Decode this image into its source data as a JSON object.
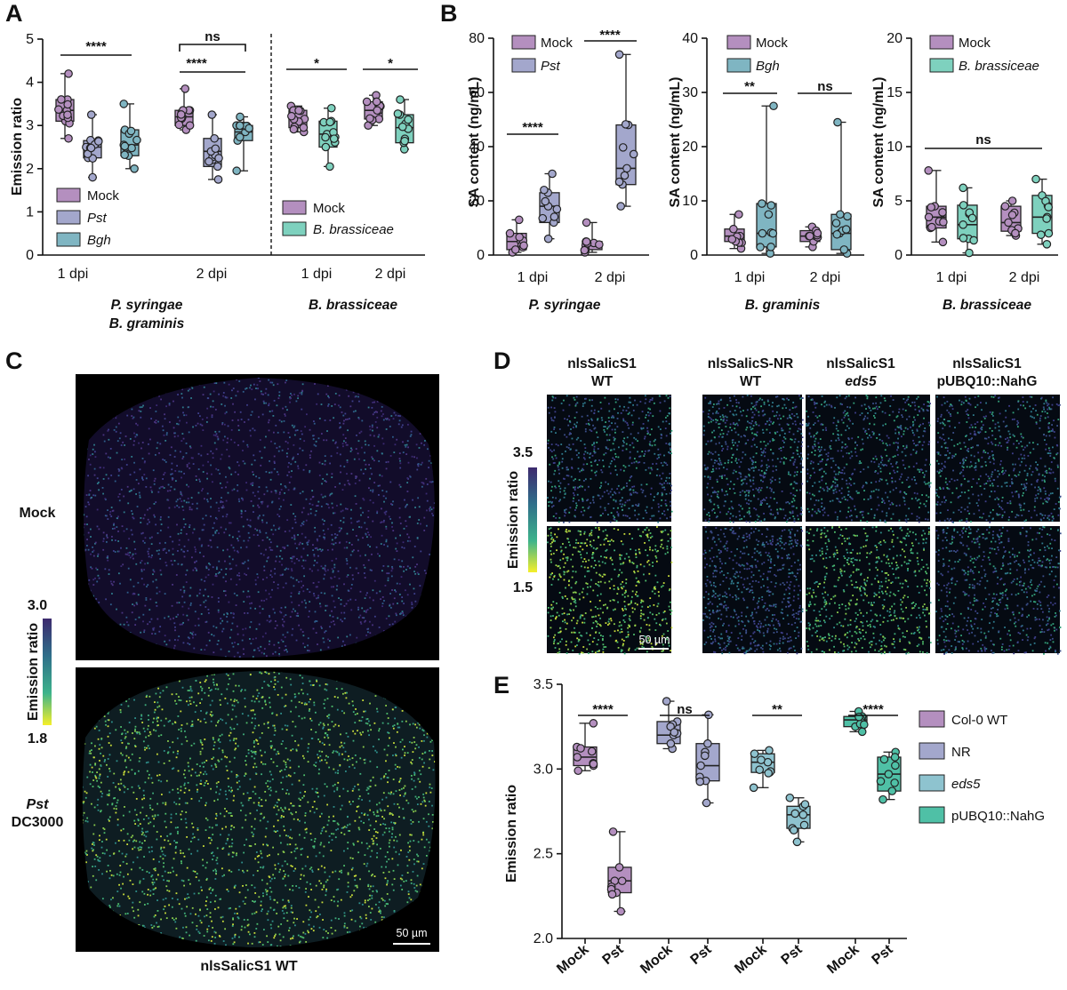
{
  "panel_labels": {
    "A": "A",
    "B": "B",
    "C": "C",
    "D": "D",
    "E": "E"
  },
  "colors": {
    "mock": "#b48fbf",
    "pst": "#a3a7cc",
    "bgh": "#7fb5c2",
    "bbras": "#7ed1be",
    "col0": "#b48fbf",
    "nr": "#a3a7cc",
    "eds5": "#8ec3cf",
    "nahg": "#4fc0a6"
  },
  "panel_a": {
    "ylabel": "Emission ratio",
    "legend1": [
      "Mock",
      "Pst",
      "Bgh"
    ],
    "legend2": [
      "Mock",
      "B. brassiceae"
    ],
    "xticks": [
      "1 dpi",
      "2 dpi",
      "1 dpi",
      "2 dpi"
    ],
    "group1_line1": "P. syringae",
    "group1_line2": "B. graminis",
    "group2": "B. brassiceae",
    "sig": [
      "****",
      "ns",
      "****",
      "*",
      "*"
    ]
  },
  "panel_b": {
    "ylabel": "SA content (ng/mL)",
    "xticks": [
      "1 dpi",
      "2 dpi"
    ],
    "sub1": {
      "legend": [
        "Mock",
        "Pst"
      ],
      "group": "P. syringae",
      "sig": [
        "****",
        "****"
      ]
    },
    "sub2": {
      "legend": [
        "Mock",
        "Bgh"
      ],
      "group": "B. graminis",
      "sig": [
        "**",
        "ns"
      ]
    },
    "sub3": {
      "legend": [
        "Mock",
        "B. brassiceae"
      ],
      "group": "B. brassiceae",
      "sig": [
        "ns"
      ]
    }
  },
  "panel_c": {
    "row1": "Mock",
    "row2_line1": "Pst",
    "row2_line2": "DC3000",
    "caption": "nlsSalicS1 WT",
    "scalebar": "50 µm",
    "colorbar_title": "Emission ratio",
    "colorbar_max": "3.0",
    "colorbar_min": "1.8"
  },
  "panel_d": {
    "headers": [
      [
        "nlsSalicS1",
        "WT"
      ],
      [
        "nlsSalicS-NR",
        "WT"
      ],
      [
        "nlsSalicS1",
        "eds5"
      ],
      [
        "nlsSalicS1",
        "pUBQ10::NahG"
      ]
    ],
    "colorbar_title": "Emission ratio",
    "colorbar_max": "3.5",
    "colorbar_min": "1.5",
    "scalebar": "50 µm"
  },
  "panel_e": {
    "ylabel": "Emission ratio",
    "xticks": [
      "Mock",
      "Pst",
      "Mock",
      "Pst",
      "Mock",
      "Pst",
      "Mock",
      "Pst"
    ],
    "legend": [
      "Col-0 WT",
      "NR",
      "eds5",
      "pUBQ10::NahG"
    ],
    "sig": [
      "****",
      "ns",
      "**",
      "****"
    ]
  },
  "chart_data": [
    {
      "type": "box",
      "panel": "A",
      "ylabel": "Emission ratio",
      "ylim": [
        0,
        5
      ],
      "yticks": [
        0,
        1,
        2,
        3,
        4,
        5
      ],
      "categories": [
        "1 dpi",
        "2 dpi",
        "1 dpi",
        "2 dpi"
      ],
      "series": [
        {
          "name": "Mock",
          "boxes": [
            {
              "x": "1 dpi",
              "min": 2.7,
              "q1": 3.1,
              "median": 3.35,
              "q3": 3.6,
              "max": 4.2
            },
            {
              "x": "2 dpi",
              "min": 2.9,
              "q1": 3.0,
              "median": 3.2,
              "q3": 3.35,
              "max": 3.85
            }
          ]
        },
        {
          "name": "Pst",
          "boxes": [
            {
              "x": "1 dpi",
              "min": 1.8,
              "q1": 2.25,
              "median": 2.5,
              "q3": 2.65,
              "max": 3.25
            },
            {
              "x": "2 dpi",
              "min": 1.75,
              "q1": 2.05,
              "median": 2.4,
              "q3": 2.7,
              "max": 3.25
            }
          ]
        },
        {
          "name": "Bgh",
          "boxes": [
            {
              "x": "1 dpi",
              "min": 2.0,
              "q1": 2.3,
              "median": 2.55,
              "q3": 2.9,
              "max": 3.5
            },
            {
              "x": "2 dpi",
              "min": 1.95,
              "q1": 2.65,
              "median": 2.85,
              "q3": 3.0,
              "max": 3.2
            }
          ]
        },
        {
          "name": "Mock",
          "boxes": [
            {
              "x": "1 dpi",
              "min": 2.85,
              "q1": 2.95,
              "median": 3.15,
              "q3": 3.35,
              "max": 3.45
            },
            {
              "x": "2 dpi",
              "min": 3.0,
              "q1": 3.15,
              "median": 3.35,
              "q3": 3.55,
              "max": 3.7
            }
          ]
        },
        {
          "name": "B. brassiceae",
          "boxes": [
            {
              "x": "1 dpi",
              "min": 2.05,
              "q1": 2.5,
              "median": 2.8,
              "q3": 3.1,
              "max": 3.4
            },
            {
              "x": "2 dpi",
              "min": 2.45,
              "q1": 2.6,
              "median": 2.95,
              "q3": 3.25,
              "max": 3.6
            }
          ]
        }
      ],
      "significance": [
        "****",
        "ns",
        "****",
        "*",
        "*"
      ]
    },
    {
      "type": "box",
      "panel": "B",
      "ylabel": "SA content (ng/mL)",
      "ylim": [
        0,
        80
      ],
      "yticks": [
        0,
        20,
        40,
        60,
        80
      ],
      "categories": [
        "1 dpi",
        "2 dpi"
      ],
      "group": "P. syringae",
      "series": [
        {
          "name": "Mock",
          "boxes": [
            {
              "x": "1 dpi",
              "min": 1,
              "q1": 2,
              "median": 5,
              "q3": 8,
              "max": 13
            },
            {
              "x": "2 dpi",
              "min": 1,
              "q1": 2,
              "median": 3.5,
              "q3": 5,
              "max": 12
            }
          ]
        },
        {
          "name": "Pst",
          "boxes": [
            {
              "x": "1 dpi",
              "min": 6,
              "q1": 12,
              "median": 18,
              "q3": 23,
              "max": 30
            },
            {
              "x": "2 dpi",
              "min": 18,
              "q1": 26,
              "median": 32,
              "q3": 48,
              "max": 74
            }
          ]
        }
      ],
      "significance": [
        "****",
        "****"
      ]
    },
    {
      "type": "box",
      "panel": "B",
      "ylabel": "SA content (ng/mL)",
      "ylim": [
        0,
        40
      ],
      "yticks": [
        0,
        10,
        20,
        30,
        40
      ],
      "categories": [
        "1 dpi",
        "2 dpi"
      ],
      "group": "B. graminis",
      "series": [
        {
          "name": "Mock",
          "boxes": [
            {
              "x": "1 dpi",
              "min": 1.2,
              "q1": 2.5,
              "median": 3.5,
              "q3": 4.8,
              "max": 7.5
            },
            {
              "x": "2 dpi",
              "min": 1.5,
              "q1": 2.5,
              "median": 3.5,
              "q3": 4.5,
              "max": 5.2
            }
          ]
        },
        {
          "name": "Bgh",
          "boxes": [
            {
              "x": "1 dpi",
              "min": 0.3,
              "q1": 1.5,
              "median": 4,
              "q3": 9.5,
              "max": 27.5
            },
            {
              "x": "2 dpi",
              "min": 0.3,
              "q1": 1,
              "median": 4,
              "q3": 7.5,
              "max": 24.5
            }
          ]
        }
      ],
      "significance": [
        "**",
        "ns"
      ]
    },
    {
      "type": "box",
      "panel": "B",
      "ylabel": "SA content (ng/mL)",
      "ylim": [
        0,
        20
      ],
      "yticks": [
        0,
        5,
        10,
        15,
        20
      ],
      "categories": [
        "1 dpi",
        "2 dpi"
      ],
      "group": "B. brassiceae",
      "series": [
        {
          "name": "Mock",
          "boxes": [
            {
              "x": "1 dpi",
              "min": 1.2,
              "q1": 2.5,
              "median": 3.5,
              "q3": 4.5,
              "max": 7.8
            },
            {
              "x": "2 dpi",
              "min": 1.8,
              "q1": 2.2,
              "median": 3,
              "q3": 4.5,
              "max": 5
            }
          ]
        },
        {
          "name": "B. brassiceae",
          "boxes": [
            {
              "x": "1 dpi",
              "min": 0.2,
              "q1": 1.5,
              "median": 2.8,
              "q3": 4.6,
              "max": 6.2
            },
            {
              "x": "2 dpi",
              "min": 1,
              "q1": 2,
              "median": 3.5,
              "q3": 5.5,
              "max": 7
            }
          ]
        }
      ],
      "significance": [
        "ns"
      ]
    },
    {
      "type": "box",
      "panel": "E",
      "ylabel": "Emission ratio",
      "ylim": [
        2.0,
        3.5
      ],
      "yticks": [
        2.0,
        2.5,
        3.0,
        3.5
      ],
      "categories": [
        "Mock",
        "Pst",
        "Mock",
        "Pst",
        "Mock",
        "Pst",
        "Mock",
        "Pst"
      ],
      "series": [
        {
          "name": "Col-0 WT",
          "boxes": [
            {
              "x": "Mock",
              "min": 2.99,
              "q1": 3.02,
              "median": 3.07,
              "q3": 3.13,
              "max": 3.27
            },
            {
              "x": "Pst",
              "min": 2.16,
              "q1": 2.27,
              "median": 2.34,
              "q3": 2.42,
              "max": 2.63
            }
          ]
        },
        {
          "name": "NR",
          "boxes": [
            {
              "x": "Mock",
              "min": 3.12,
              "q1": 3.15,
              "median": 3.2,
              "q3": 3.28,
              "max": 3.4
            },
            {
              "x": "Pst",
              "min": 2.8,
              "q1": 2.93,
              "median": 3.02,
              "q3": 3.15,
              "max": 3.32
            }
          ]
        },
        {
          "name": "eds5",
          "boxes": [
            {
              "x": "Mock",
              "min": 2.89,
              "q1": 2.98,
              "median": 3.04,
              "q3": 3.09,
              "max": 3.11
            },
            {
              "x": "Pst",
              "min": 2.57,
              "q1": 2.65,
              "median": 2.73,
              "q3": 2.78,
              "max": 2.83
            }
          ]
        },
        {
          "name": "pUBQ10::NahG",
          "boxes": [
            {
              "x": "Mock",
              "min": 3.22,
              "q1": 3.25,
              "median": 3.29,
              "q3": 3.31,
              "max": 3.34
            },
            {
              "x": "Pst",
              "min": 2.82,
              "q1": 2.87,
              "median": 2.97,
              "q3": 3.07,
              "max": 3.1
            }
          ]
        }
      ],
      "significance": [
        "****",
        "ns",
        "**",
        "****"
      ]
    }
  ]
}
